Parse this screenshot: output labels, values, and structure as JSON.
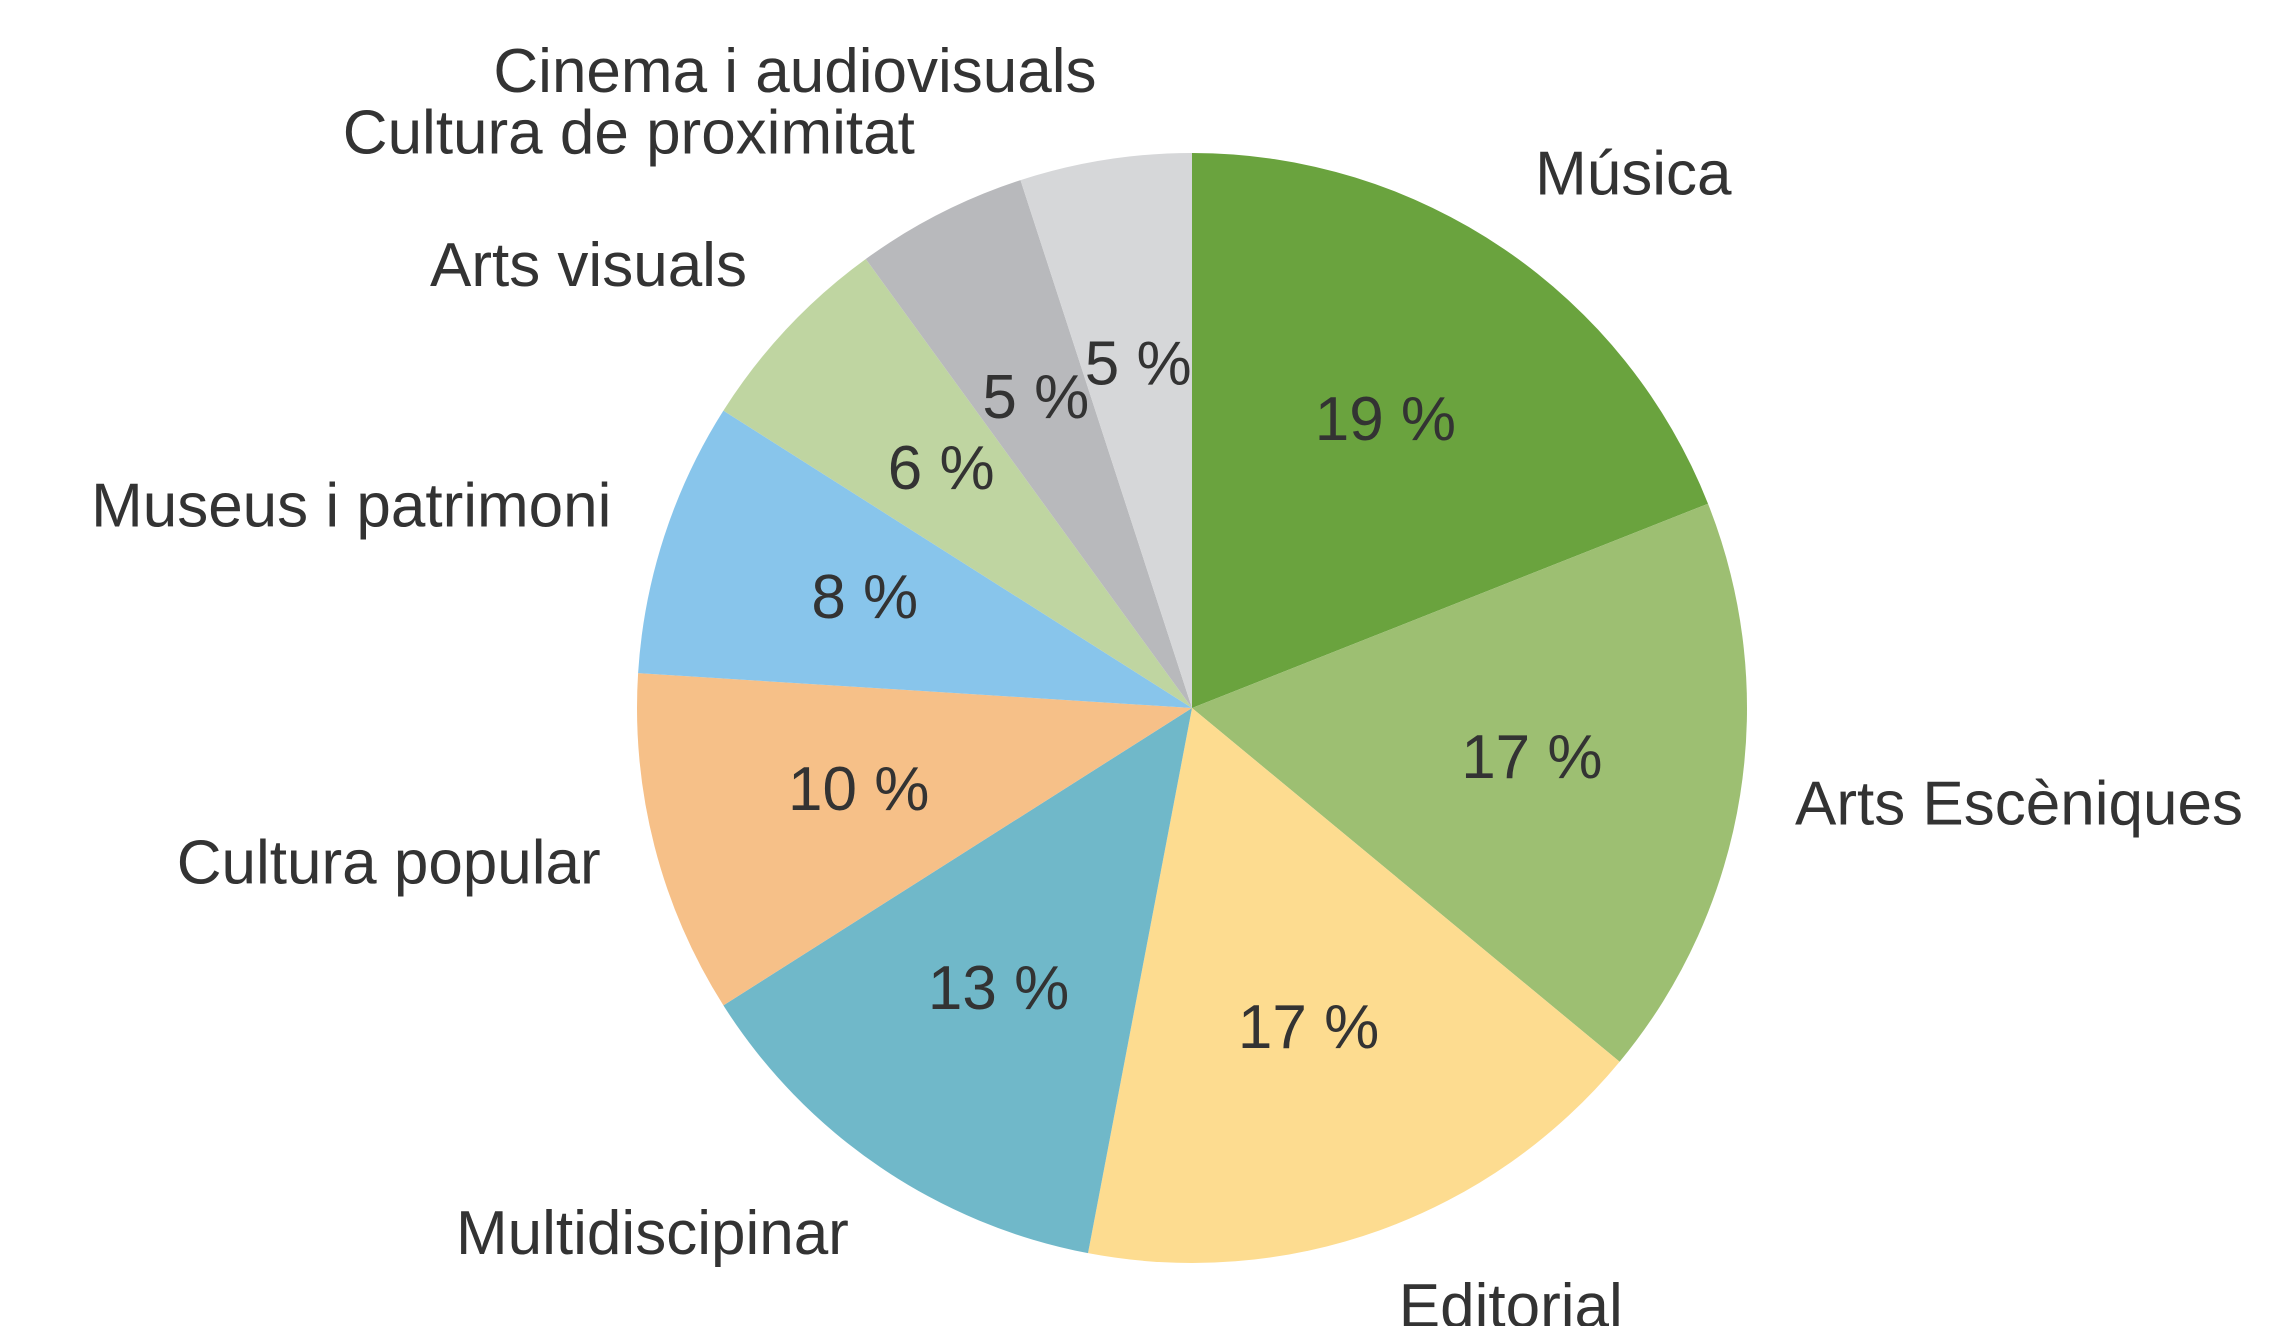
{
  "chart_data": {
    "type": "pie",
    "categories": [
      "Música",
      "Arts Escèniques",
      "Editorial",
      "Multidiscipinar",
      "Cultura popular",
      "Museus i patrimoni",
      "Arts visuals",
      "Cultura de proximitat",
      "Cinema i audiovisuals"
    ],
    "values": [
      19,
      17,
      17,
      13,
      10,
      8,
      6,
      5,
      5
    ],
    "value_labels": [
      "19 %",
      "17 %",
      "17 %",
      "13 %",
      "10 %",
      "8 %",
      "6 %",
      "5 %",
      "5 %"
    ],
    "colors": [
      "#6aa33e",
      "#9dbf72",
      "#fddc90",
      "#70b8c9",
      "#f6c088",
      "#88c5eb",
      "#bfd5a1",
      "#b8b9bc",
      "#d6d7d9"
    ]
  }
}
